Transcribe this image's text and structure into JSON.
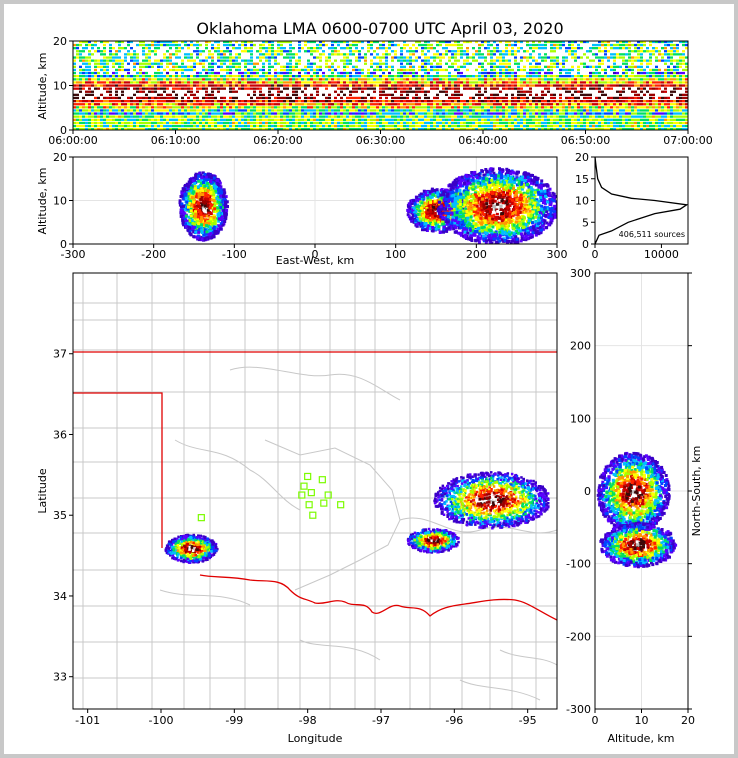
{
  "title": "Oklahoma LMA 0600-0700 UTC April 03, 2020",
  "colors": {
    "colormap": [
      "#3a00c8",
      "#5a00ff",
      "#0044ff",
      "#00bfff",
      "#00e060",
      "#a6ff00",
      "#ffff00",
      "#ff9900",
      "#ff2200",
      "#cc0000",
      "#990000",
      "#3a0a0a",
      "#ffffff",
      "#bbbbbb"
    ],
    "state_line": "#e00000",
    "county_line": "#c8c8c8",
    "station": "#7cfc00"
  },
  "chart_data": [
    {
      "type": "heatmap",
      "panel": "time-altitude",
      "ylabel": "Altitude, km",
      "xlabel": "",
      "ylim": [
        0,
        20
      ],
      "yticks": [
        "0",
        "10",
        "20"
      ],
      "xlim": [
        "06:00:00",
        "07:00:00"
      ],
      "xticks": [
        "06:00:00",
        "06:10:00",
        "06:20:00",
        "06:30:00",
        "06:40:00",
        "06:50:00",
        "07:00:00"
      ]
    },
    {
      "type": "heatmap",
      "panel": "east-west-altitude",
      "xlabel": "East-West, km",
      "ylabel": "Altitude, km",
      "xlim": [
        -300,
        300
      ],
      "ylim": [
        0,
        20
      ],
      "xticks": [
        "-300",
        "-200",
        "-100",
        "0",
        "100",
        "200",
        "300"
      ],
      "yticks": [
        "0",
        "10",
        "20"
      ],
      "clusters": [
        {
          "x_km": -140,
          "alt_km": 9
        },
        {
          "x_km": 150,
          "alt_km": 8
        },
        {
          "x_km": 225,
          "alt_km": 9
        }
      ]
    },
    {
      "type": "line",
      "panel": "altitude-histogram",
      "annotation": "406,511 sources",
      "xlim": [
        0,
        14000
      ],
      "ylim": [
        0,
        20
      ],
      "xticks": [
        "0",
        "10000"
      ],
      "yticks": [
        "0",
        "5",
        "10",
        "15",
        "20"
      ],
      "series": [
        {
          "points": [
            [
              0,
              0
            ],
            [
              600,
              2
            ],
            [
              2500,
              3
            ],
            [
              5000,
              5
            ],
            [
              9000,
              7
            ],
            [
              12800,
              8
            ],
            [
              13800,
              9
            ],
            [
              9000,
              10
            ],
            [
              5500,
              10.5
            ],
            [
              2500,
              11.5
            ],
            [
              1000,
              13
            ],
            [
              400,
              15
            ],
            [
              150,
              18
            ],
            [
              0,
              20
            ]
          ]
        }
      ]
    },
    {
      "type": "heatmap",
      "panel": "plan-view",
      "xlabel": "Longitude",
      "ylabel": "Latitude",
      "xlim": [
        -101.2,
        -94.6
      ],
      "ylim": [
        32.6,
        38.0
      ],
      "xticks": [
        "-101",
        "-100",
        "-99",
        "-98",
        "-97",
        "-96",
        "-95"
      ],
      "yticks": [
        "33",
        "34",
        "35",
        "36",
        "37"
      ],
      "clusters": [
        {
          "lon": -99.6,
          "lat": 34.6
        },
        {
          "lon": -96.3,
          "lat": 34.7
        },
        {
          "lon": -95.5,
          "lat": 35.2
        }
      ],
      "stations": [
        {
          "lon": -98.0,
          "lat": 35.48
        },
        {
          "lon": -97.8,
          "lat": 35.44
        },
        {
          "lon": -98.05,
          "lat": 35.36
        },
        {
          "lon": -98.08,
          "lat": 35.25
        },
        {
          "lon": -97.95,
          "lat": 35.28
        },
        {
          "lon": -97.72,
          "lat": 35.25
        },
        {
          "lon": -97.98,
          "lat": 35.13
        },
        {
          "lon": -97.78,
          "lat": 35.15
        },
        {
          "lon": -97.55,
          "lat": 35.13
        },
        {
          "lon": -97.93,
          "lat": 35.0
        },
        {
          "lon": -99.45,
          "lat": 34.97
        }
      ]
    },
    {
      "type": "heatmap",
      "panel": "altitude-north-south",
      "xlabel": "Altitude, km",
      "ylabel": "North-South, km",
      "xlim": [
        0,
        20
      ],
      "ylim": [
        -300,
        300
      ],
      "xticks": [
        "0",
        "10",
        "20"
      ],
      "yticks": [
        "300",
        "200",
        "100",
        "0",
        "-100",
        "-200",
        "-300"
      ],
      "clusters": [
        {
          "alt_km": 8,
          "y_km": 0
        },
        {
          "alt_km": 9,
          "y_km": -72
        }
      ]
    }
  ]
}
